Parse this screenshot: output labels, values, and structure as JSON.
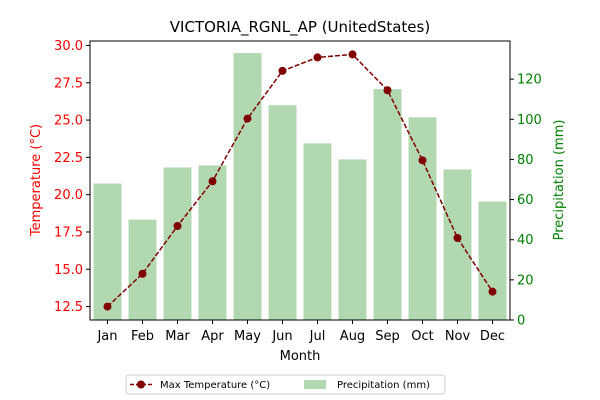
{
  "chart_data": {
    "type": "bar+line",
    "title": "VICTORIA_RGNL_AP (UnitedStates)",
    "xlabel": "Month",
    "categories": [
      "Jan",
      "Feb",
      "Mar",
      "Apr",
      "May",
      "Jun",
      "Jul",
      "Aug",
      "Sep",
      "Oct",
      "Nov",
      "Dec"
    ],
    "series": [
      {
        "name": "Max Temperature (°C)",
        "kind": "line",
        "axis": "left",
        "color": "#800000",
        "values": [
          12.5,
          14.7,
          17.9,
          20.9,
          25.1,
          28.3,
          29.2,
          29.4,
          27.0,
          22.3,
          17.1,
          13.5
        ]
      },
      {
        "name": "Precipitation (mm)",
        "kind": "bar",
        "axis": "right",
        "color": "#b2d8b2",
        "values": [
          68,
          50,
          76,
          77,
          133,
          107,
          88,
          80,
          115,
          101,
          75,
          59
        ]
      }
    ],
    "y_left": {
      "label": "Temperature (°C)",
      "color": "#ff0000",
      "range": [
        11.6,
        30.3
      ],
      "ticks": [
        "12.5",
        "15.0",
        "17.5",
        "20.0",
        "22.5",
        "25.0",
        "27.5",
        "30.0"
      ]
    },
    "y_right": {
      "label": "Precipitation (mm)",
      "color": "#008000",
      "range": [
        0,
        139
      ],
      "ticks": [
        "0",
        "20",
        "40",
        "60",
        "80",
        "100",
        "120"
      ]
    },
    "legend": {
      "placement": "bottom-center"
    },
    "grid": false
  }
}
